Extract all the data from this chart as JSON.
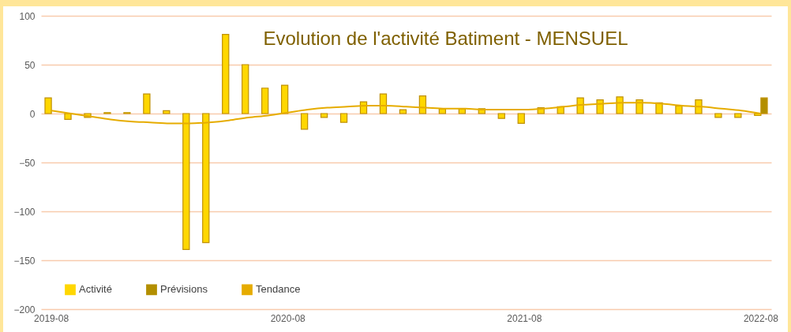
{
  "chart_data": {
    "type": "bar",
    "title": "Evolution de l'activité Batiment - MENSUEL",
    "categories": [
      "2019-08",
      null,
      null,
      null,
      null,
      null,
      null,
      null,
      null,
      null,
      null,
      null,
      "2020-08",
      null,
      null,
      null,
      null,
      null,
      null,
      null,
      null,
      null,
      null,
      null,
      "2021-08",
      null,
      null,
      null,
      null,
      null,
      null,
      null,
      null,
      null,
      null,
      null,
      "2022-08"
    ],
    "series": [
      {
        "name": "Activité",
        "color": "#ffd700",
        "values": [
          16,
          -6,
          -4,
          1,
          1,
          20,
          3,
          -139,
          -132,
          81,
          50,
          26,
          29,
          -16,
          -4,
          -9,
          12,
          20,
          4,
          18,
          5,
          5,
          5,
          -5,
          -10,
          6,
          7,
          16,
          14,
          17,
          14,
          11,
          8,
          14,
          -4,
          -4,
          -2
        ]
      },
      {
        "name": "Prévisions",
        "color": "#b38f00",
        "values": [
          null,
          null,
          null,
          null,
          null,
          null,
          null,
          null,
          null,
          null,
          null,
          null,
          null,
          null,
          null,
          null,
          null,
          null,
          null,
          null,
          null,
          null,
          null,
          null,
          null,
          null,
          null,
          null,
          null,
          null,
          null,
          null,
          null,
          null,
          null,
          null,
          16
        ]
      },
      {
        "name": "Tendance",
        "type": "line",
        "color": "#e6ac00",
        "values": [
          3,
          0,
          -3,
          -6,
          -8,
          -9,
          -10,
          -10,
          -9,
          -7,
          -4,
          -2,
          1,
          4,
          6,
          7,
          8,
          8,
          7,
          6,
          5,
          5,
          4,
          4,
          4,
          5,
          7,
          9,
          10,
          11,
          11,
          10,
          8,
          7,
          5,
          3,
          0
        ]
      }
    ],
    "ylim": [
      -200,
      100
    ],
    "yticks": [
      -200,
      -150,
      -100,
      -50,
      0,
      50,
      100
    ],
    "grid": "y",
    "legend": "bottom left"
  }
}
